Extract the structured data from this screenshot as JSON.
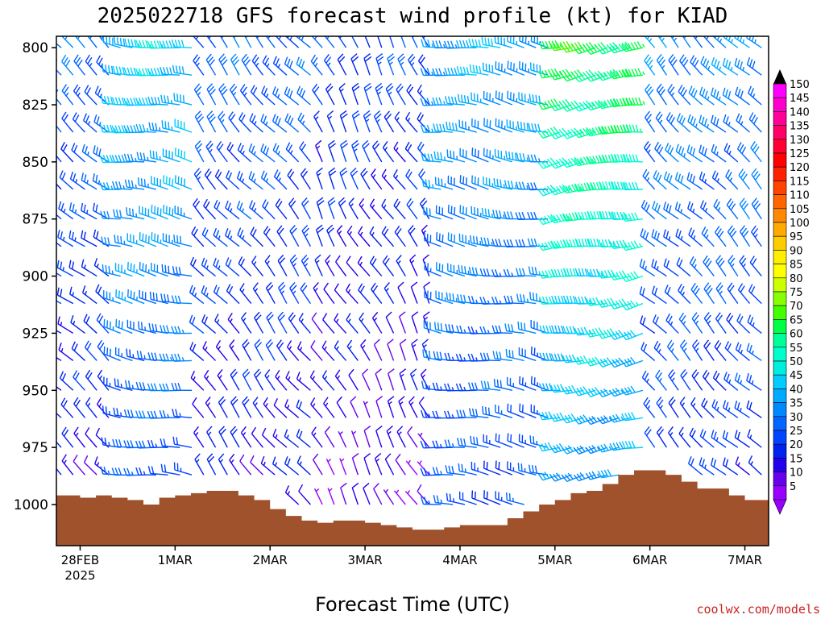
{
  "title": "2025022718 GFS forecast wind profile (kt) for KIAD",
  "credit": "coolwx.com/models",
  "chart_data": {
    "type": "wind_barb_time_height",
    "title": "2025022718 GFS forecast wind profile (kt) for KIAD",
    "xlabel": "Forecast Time (UTC)",
    "ylabel": "",
    "yaxis": {
      "reversed": true,
      "ticks": [
        800,
        825,
        850,
        875,
        900,
        925,
        950,
        975,
        1000
      ],
      "ylim": [
        795,
        1018
      ],
      "units": "hPa"
    },
    "xaxis": {
      "ticks": [
        {
          "label": "28FEB",
          "sublabel": "2025",
          "t": 6
        },
        {
          "label": "1MAR",
          "sublabel": "",
          "t": 30
        },
        {
          "label": "2MAR",
          "sublabel": "",
          "t": 54
        },
        {
          "label": "3MAR",
          "sublabel": "",
          "t": 78
        },
        {
          "label": "4MAR",
          "sublabel": "",
          "t": 102
        },
        {
          "label": "5MAR",
          "sublabel": "",
          "t": 126
        },
        {
          "label": "6MAR",
          "sublabel": "",
          "t": 150
        },
        {
          "label": "7MAR",
          "sublabel": "",
          "t": 174
        }
      ],
      "xlim": [
        0,
        180
      ],
      "note": "hours after 2025022718"
    },
    "colorbar": {
      "labels": [
        150,
        145,
        140,
        135,
        130,
        125,
        120,
        115,
        110,
        105,
        100,
        95,
        90,
        85,
        80,
        75,
        70,
        65,
        60,
        55,
        50,
        45,
        40,
        35,
        30,
        25,
        20,
        15,
        10,
        5
      ],
      "colors": [
        "#ff00ff",
        "#ff00cc",
        "#ff0099",
        "#ff0066",
        "#ff0033",
        "#ff0000",
        "#ff2200",
        "#ff4400",
        "#ff6600",
        "#ff8800",
        "#ffaa00",
        "#ffcc00",
        "#ffee00",
        "#ffff00",
        "#ccff00",
        "#88ff00",
        "#44ff00",
        "#00ff44",
        "#00ff99",
        "#00ffcc",
        "#00eedd",
        "#00ccff",
        "#00aaff",
        "#0088ff",
        "#0066ff",
        "#0044ff",
        "#0022ee",
        "#2200ee",
        "#6600ee",
        "#9900ff"
      ]
    },
    "terrain": {
      "color": "#a0522d",
      "surface_pressure_hPa": [
        [
          0,
          996
        ],
        [
          6,
          997
        ],
        [
          10,
          996
        ],
        [
          14,
          997
        ],
        [
          18,
          998
        ],
        [
          22,
          1000
        ],
        [
          26,
          997
        ],
        [
          30,
          996
        ],
        [
          34,
          995
        ],
        [
          38,
          994
        ],
        [
          42,
          994
        ],
        [
          46,
          996
        ],
        [
          50,
          998
        ],
        [
          54,
          1002
        ],
        [
          58,
          1005
        ],
        [
          62,
          1007
        ],
        [
          66,
          1008
        ],
        [
          70,
          1007
        ],
        [
          74,
          1007
        ],
        [
          78,
          1008
        ],
        [
          82,
          1009
        ],
        [
          86,
          1010
        ],
        [
          90,
          1011
        ],
        [
          94,
          1011
        ],
        [
          98,
          1010
        ],
        [
          102,
          1009
        ],
        [
          106,
          1009
        ],
        [
          110,
          1009
        ],
        [
          114,
          1006
        ],
        [
          118,
          1003
        ],
        [
          122,
          1000
        ],
        [
          126,
          998
        ],
        [
          130,
          995
        ],
        [
          134,
          994
        ],
        [
          138,
          991
        ],
        [
          142,
          987
        ],
        [
          146,
          985
        ],
        [
          150,
          985
        ],
        [
          154,
          987
        ],
        [
          158,
          990
        ],
        [
          162,
          993
        ],
        [
          166,
          993
        ],
        [
          170,
          996
        ],
        [
          174,
          998
        ],
        [
          180,
          998
        ]
      ]
    },
    "wind_barbs": {
      "levels_hPa": [
        800,
        812,
        825,
        837,
        850,
        862,
        875,
        887,
        900,
        912,
        925,
        937,
        950,
        962,
        975,
        987,
        1000
      ],
      "times_h": [
        0,
        3,
        6,
        9,
        12,
        15,
        18,
        21,
        24,
        27,
        30,
        33,
        36,
        39,
        42,
        45,
        48,
        51,
        54,
        57,
        60,
        63,
        66,
        69,
        72,
        75,
        78,
        81,
        84,
        87,
        90,
        93,
        96,
        99,
        102,
        105,
        108,
        111,
        114,
        117,
        120,
        123,
        126,
        129,
        132,
        135,
        138,
        141,
        144,
        147,
        150,
        153,
        156,
        159,
        162,
        165,
        168,
        171,
        174,
        177
      ],
      "regimes": [
        {
          "t0": 0,
          "t1": 15,
          "direction_deg": 310,
          "speed_kt_top": 30,
          "speed_kt_bottom": 15
        },
        {
          "t0": 15,
          "t1": 36,
          "direction_deg": 280,
          "speed_kt_top": 45,
          "speed_kt_bottom": 25
        },
        {
          "t0": 36,
          "t1": 66,
          "direction_deg": 320,
          "speed_kt_top": 30,
          "speed_kt_bottom": 15
        },
        {
          "t0": 66,
          "t1": 96,
          "direction_deg": 330,
          "speed_kt_top": 25,
          "speed_kt_bottom": 10
        },
        {
          "t0": 96,
          "t1": 126,
          "direction_deg": 280,
          "speed_kt_top": 40,
          "speed_kt_bottom": 25
        },
        {
          "t0": 126,
          "t1": 150,
          "direction_deg": 260,
          "speed_kt_top": 65,
          "speed_kt_bottom": 35
        },
        {
          "t0": 150,
          "t1": 180,
          "direction_deg": 315,
          "speed_kt_top": 35,
          "speed_kt_bottom": 20
        }
      ]
    }
  }
}
